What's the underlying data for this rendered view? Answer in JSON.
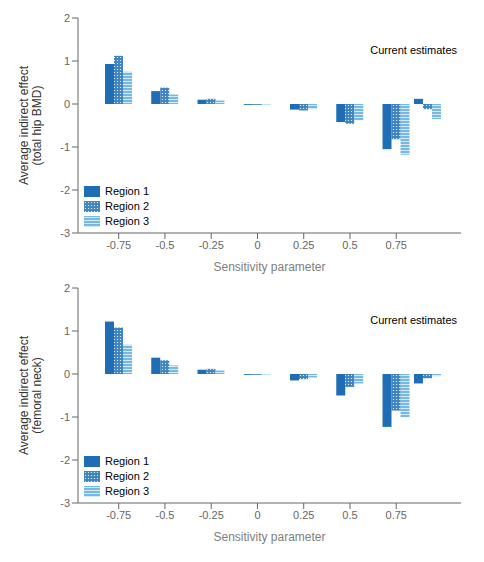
{
  "chart_data": [
    {
      "type": "bar",
      "ylabel": "Average indirect effect\n(total hip BMD)",
      "xlabel": "Sensitivity parameter",
      "x": [
        -0.75,
        -0.5,
        -0.25,
        0.0,
        0.25,
        0.5,
        0.75,
        0.92
      ],
      "series": [
        {
          "name": "Region 1",
          "color": "#1f6eb5",
          "values": [
            0.93,
            0.3,
            0.1,
            -0.02,
            -0.13,
            -0.42,
            -1.05,
            0.12
          ]
        },
        {
          "name": "Region 2",
          "color": "#1f6eb5",
          "values": [
            1.12,
            0.38,
            0.12,
            -0.02,
            -0.15,
            -0.46,
            -0.82,
            -0.12
          ]
        },
        {
          "name": "Region 3",
          "color": "#3a9ad9",
          "values": [
            0.75,
            0.22,
            0.08,
            -0.01,
            -0.12,
            -0.38,
            -1.18,
            -0.35
          ]
        }
      ],
      "xlim": [
        -0.97,
        1.1
      ],
      "xticks": [
        -0.75,
        -0.5,
        -0.25,
        0.0,
        0.25,
        0.5,
        0.75
      ],
      "ylim": [
        -3,
        2
      ],
      "yticks": [
        -3,
        -2,
        -1,
        0,
        1,
        2
      ],
      "grid": false,
      "legend": "lower left",
      "annotations": [
        "Current estimates"
      ]
    },
    {
      "type": "bar",
      "ylabel": "Average indirect effect\n(femoral neck)",
      "xlabel": "Sensitivity parameter",
      "x": [
        -0.75,
        -0.5,
        -0.25,
        0.0,
        0.25,
        0.5,
        0.75,
        0.92
      ],
      "series": [
        {
          "name": "Region 1",
          "color": "#1f6eb5",
          "values": [
            1.22,
            0.38,
            0.1,
            -0.02,
            -0.15,
            -0.5,
            -1.23,
            -0.22
          ]
        },
        {
          "name": "Region 2",
          "color": "#1f6eb5",
          "values": [
            1.08,
            0.32,
            0.12,
            -0.02,
            -0.12,
            -0.3,
            -0.85,
            -0.1
          ]
        },
        {
          "name": "Region 3",
          "color": "#3a9ad9",
          "values": [
            0.68,
            0.2,
            0.08,
            -0.01,
            -0.08,
            -0.22,
            -1.0,
            -0.05
          ]
        }
      ],
      "xlim": [
        -0.97,
        1.1
      ],
      "xticks": [
        -0.75,
        -0.5,
        -0.25,
        0.0,
        0.25,
        0.5,
        0.75
      ],
      "ylim": [
        -3,
        2
      ],
      "yticks": [
        -3,
        -2,
        -1,
        0,
        1,
        2
      ],
      "grid": false,
      "legend": "lower left",
      "annotations": [
        "Current estimates"
      ]
    }
  ]
}
